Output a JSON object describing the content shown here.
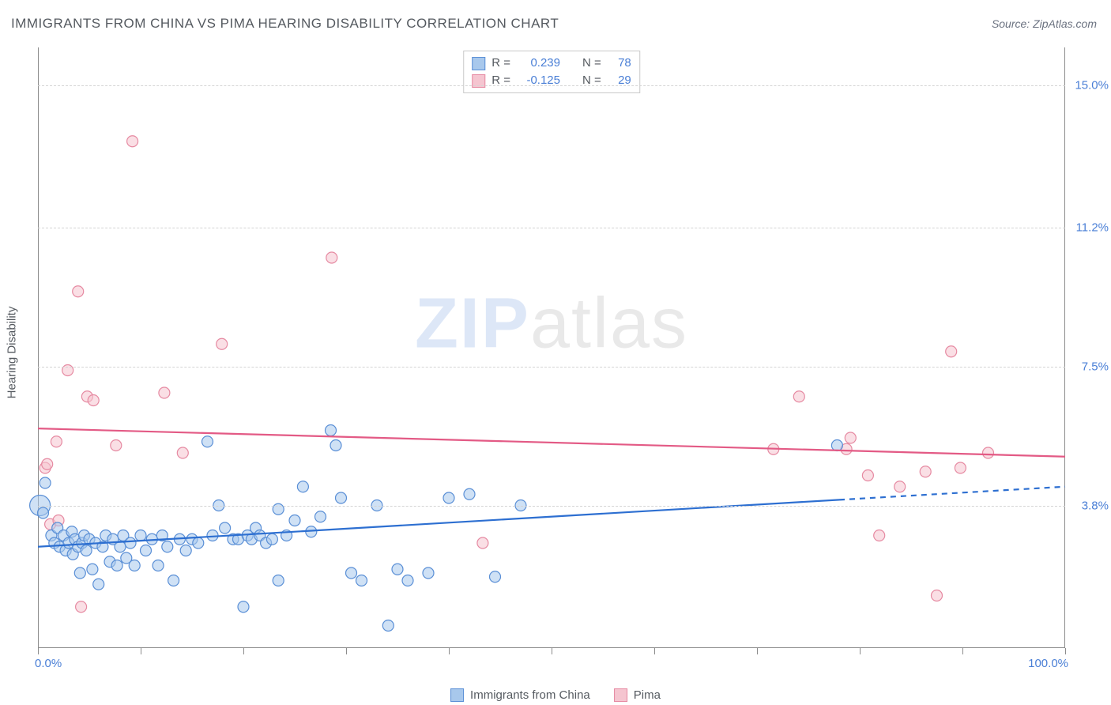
{
  "title": "IMMIGRANTS FROM CHINA VS PIMA HEARING DISABILITY CORRELATION CHART",
  "source_label": "Source: ZipAtlas.com",
  "y_axis_title": "Hearing Disability",
  "watermark": {
    "part1": "ZIP",
    "part2": "atlas"
  },
  "x_axis": {
    "min_label": "0.0%",
    "max_label": "100.0%",
    "min": 0,
    "max": 100,
    "tick_positions": [
      0,
      10,
      20,
      30,
      40,
      50,
      60,
      70,
      80,
      90,
      100
    ]
  },
  "y_axis": {
    "min": 0,
    "max": 16,
    "gridlines": [
      {
        "value": 3.8,
        "label": "3.8%"
      },
      {
        "value": 7.5,
        "label": "7.5%"
      },
      {
        "value": 11.2,
        "label": "11.2%"
      },
      {
        "value": 15.0,
        "label": "15.0%"
      }
    ]
  },
  "colors": {
    "series_a_fill": "#a8c8ec",
    "series_a_stroke": "#5a8fd6",
    "series_a_line": "#2d6fd1",
    "series_b_fill": "#f5c5d0",
    "series_b_stroke": "#e68aa2",
    "series_b_line": "#e35a85",
    "grid": "#d4d4d4",
    "axis": "#8c8c8c",
    "tick_text": "#4a7fd6",
    "title_text": "#555a60"
  },
  "legend_stats": [
    {
      "series": "a",
      "r_label": "R =",
      "r_value": "0.239",
      "n_label": "N =",
      "n_value": "78"
    },
    {
      "series": "b",
      "r_label": "R =",
      "r_value": "-0.125",
      "n_label": "N =",
      "n_value": "29"
    }
  ],
  "bottom_legend": [
    {
      "series": "a",
      "label": "Immigrants from China"
    },
    {
      "series": "b",
      "label": "Pima"
    }
  ],
  "trend_lines": {
    "a": {
      "x1": 0,
      "y1": 2.7,
      "x2_solid": 78,
      "y2_solid": 3.95,
      "x2_dash": 100,
      "y2_dash": 4.3
    },
    "b": {
      "x1": 0,
      "y1": 5.85,
      "x2_solid": 100,
      "y2_solid": 5.1
    }
  },
  "series_a_points": [
    {
      "x": 0.2,
      "y": 3.8,
      "r": 13
    },
    {
      "x": 0.5,
      "y": 3.6,
      "r": 7
    },
    {
      "x": 0.7,
      "y": 4.4,
      "r": 7
    },
    {
      "x": 1.3,
      "y": 3.0,
      "r": 7
    },
    {
      "x": 1.6,
      "y": 2.8,
      "r": 7
    },
    {
      "x": 1.9,
      "y": 3.2,
      "r": 7
    },
    {
      "x": 2.1,
      "y": 2.7,
      "r": 7
    },
    {
      "x": 2.5,
      "y": 3.0,
      "r": 7
    },
    {
      "x": 2.7,
      "y": 2.6,
      "r": 7
    },
    {
      "x": 3.0,
      "y": 2.8,
      "r": 7
    },
    {
      "x": 3.3,
      "y": 3.1,
      "r": 7
    },
    {
      "x": 3.4,
      "y": 2.5,
      "r": 7
    },
    {
      "x": 3.6,
      "y": 2.9,
      "r": 7
    },
    {
      "x": 3.9,
      "y": 2.7,
      "r": 7
    },
    {
      "x": 4.1,
      "y": 2.0,
      "r": 7
    },
    {
      "x": 4.3,
      "y": 2.8,
      "r": 7
    },
    {
      "x": 4.5,
      "y": 3.0,
      "r": 7
    },
    {
      "x": 4.7,
      "y": 2.6,
      "r": 7
    },
    {
      "x": 5.0,
      "y": 2.9,
      "r": 7
    },
    {
      "x": 5.3,
      "y": 2.1,
      "r": 7
    },
    {
      "x": 5.6,
      "y": 2.8,
      "r": 7
    },
    {
      "x": 5.9,
      "y": 1.7,
      "r": 7
    },
    {
      "x": 6.3,
      "y": 2.7,
      "r": 7
    },
    {
      "x": 6.6,
      "y": 3.0,
      "r": 7
    },
    {
      "x": 7.0,
      "y": 2.3,
      "r": 7
    },
    {
      "x": 7.3,
      "y": 2.9,
      "r": 7
    },
    {
      "x": 7.7,
      "y": 2.2,
      "r": 7
    },
    {
      "x": 8.0,
      "y": 2.7,
      "r": 7
    },
    {
      "x": 8.3,
      "y": 3.0,
      "r": 7
    },
    {
      "x": 8.6,
      "y": 2.4,
      "r": 7
    },
    {
      "x": 9.0,
      "y": 2.8,
      "r": 7
    },
    {
      "x": 9.4,
      "y": 2.2,
      "r": 7
    },
    {
      "x": 10.0,
      "y": 3.0,
      "r": 7
    },
    {
      "x": 10.5,
      "y": 2.6,
      "r": 7
    },
    {
      "x": 11.1,
      "y": 2.9,
      "r": 7
    },
    {
      "x": 11.7,
      "y": 2.2,
      "r": 7
    },
    {
      "x": 12.1,
      "y": 3.0,
      "r": 7
    },
    {
      "x": 12.6,
      "y": 2.7,
      "r": 7
    },
    {
      "x": 13.2,
      "y": 1.8,
      "r": 7
    },
    {
      "x": 13.8,
      "y": 2.9,
      "r": 7
    },
    {
      "x": 14.4,
      "y": 2.6,
      "r": 7
    },
    {
      "x": 15.0,
      "y": 2.9,
      "r": 7
    },
    {
      "x": 15.6,
      "y": 2.8,
      "r": 7
    },
    {
      "x": 16.5,
      "y": 5.5,
      "r": 7
    },
    {
      "x": 17.0,
      "y": 3.0,
      "r": 7
    },
    {
      "x": 17.6,
      "y": 3.8,
      "r": 7
    },
    {
      "x": 18.2,
      "y": 3.2,
      "r": 7
    },
    {
      "x": 19.0,
      "y": 2.9,
      "r": 7
    },
    {
      "x": 19.5,
      "y": 2.9,
      "r": 7
    },
    {
      "x": 20.0,
      "y": 1.1,
      "r": 7
    },
    {
      "x": 20.4,
      "y": 3.0,
      "r": 7
    },
    {
      "x": 20.8,
      "y": 2.9,
      "r": 7
    },
    {
      "x": 21.2,
      "y": 3.2,
      "r": 7
    },
    {
      "x": 21.6,
      "y": 3.0,
      "r": 7
    },
    {
      "x": 22.2,
      "y": 2.8,
      "r": 7
    },
    {
      "x": 22.8,
      "y": 2.9,
      "r": 7
    },
    {
      "x": 23.4,
      "y": 3.7,
      "r": 7
    },
    {
      "x": 23.4,
      "y": 1.8,
      "r": 7
    },
    {
      "x": 24.2,
      "y": 3.0,
      "r": 7
    },
    {
      "x": 25.0,
      "y": 3.4,
      "r": 7
    },
    {
      "x": 25.8,
      "y": 4.3,
      "r": 7
    },
    {
      "x": 26.6,
      "y": 3.1,
      "r": 7
    },
    {
      "x": 27.5,
      "y": 3.5,
      "r": 7
    },
    {
      "x": 28.5,
      "y": 5.8,
      "r": 7
    },
    {
      "x": 29.0,
      "y": 5.4,
      "r": 7
    },
    {
      "x": 29.5,
      "y": 4.0,
      "r": 7
    },
    {
      "x": 30.5,
      "y": 2.0,
      "r": 7
    },
    {
      "x": 31.5,
      "y": 1.8,
      "r": 7
    },
    {
      "x": 33.0,
      "y": 3.8,
      "r": 7
    },
    {
      "x": 34.1,
      "y": 0.6,
      "r": 7
    },
    {
      "x": 35.0,
      "y": 2.1,
      "r": 7
    },
    {
      "x": 36.0,
      "y": 1.8,
      "r": 7
    },
    {
      "x": 38.0,
      "y": 2.0,
      "r": 7
    },
    {
      "x": 40.0,
      "y": 4.0,
      "r": 7
    },
    {
      "x": 42.0,
      "y": 4.1,
      "r": 7
    },
    {
      "x": 44.5,
      "y": 1.9,
      "r": 7
    },
    {
      "x": 47.0,
      "y": 3.8,
      "r": 7
    },
    {
      "x": 77.8,
      "y": 5.4,
      "r": 7
    }
  ],
  "series_b_points": [
    {
      "x": 0.7,
      "y": 4.8,
      "r": 7
    },
    {
      "x": 0.9,
      "y": 4.9,
      "r": 7
    },
    {
      "x": 1.2,
      "y": 3.3,
      "r": 7
    },
    {
      "x": 1.8,
      "y": 5.5,
      "r": 7
    },
    {
      "x": 2.0,
      "y": 3.4,
      "r": 7
    },
    {
      "x": 2.9,
      "y": 7.4,
      "r": 7
    },
    {
      "x": 3.9,
      "y": 9.5,
      "r": 7
    },
    {
      "x": 4.2,
      "y": 1.1,
      "r": 7
    },
    {
      "x": 4.8,
      "y": 6.7,
      "r": 7
    },
    {
      "x": 5.4,
      "y": 6.6,
      "r": 7
    },
    {
      "x": 7.6,
      "y": 5.4,
      "r": 7
    },
    {
      "x": 9.2,
      "y": 13.5,
      "r": 7
    },
    {
      "x": 12.3,
      "y": 6.8,
      "r": 7
    },
    {
      "x": 14.1,
      "y": 5.2,
      "r": 7
    },
    {
      "x": 17.9,
      "y": 8.1,
      "r": 7
    },
    {
      "x": 28.6,
      "y": 10.4,
      "r": 7
    },
    {
      "x": 43.3,
      "y": 2.8,
      "r": 7
    },
    {
      "x": 71.6,
      "y": 5.3,
      "r": 7
    },
    {
      "x": 74.1,
      "y": 6.7,
      "r": 7
    },
    {
      "x": 78.7,
      "y": 5.3,
      "r": 7
    },
    {
      "x": 79.1,
      "y": 5.6,
      "r": 7
    },
    {
      "x": 80.8,
      "y": 4.6,
      "r": 7
    },
    {
      "x": 81.9,
      "y": 3.0,
      "r": 7
    },
    {
      "x": 83.9,
      "y": 4.3,
      "r": 7
    },
    {
      "x": 86.4,
      "y": 4.7,
      "r": 7
    },
    {
      "x": 87.5,
      "y": 1.4,
      "r": 7
    },
    {
      "x": 88.9,
      "y": 7.9,
      "r": 7
    },
    {
      "x": 89.8,
      "y": 4.8,
      "r": 7
    },
    {
      "x": 92.5,
      "y": 5.2,
      "r": 7
    }
  ]
}
